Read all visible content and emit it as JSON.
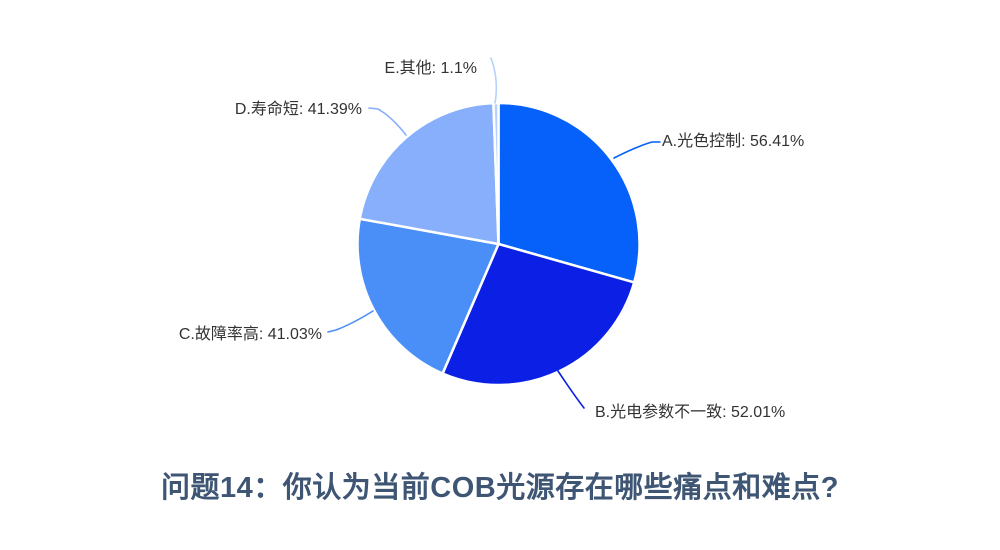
{
  "title": {
    "text": "问题14：你认为当前COB光源存在哪些痛点和难点?",
    "color": "#3E5674"
  },
  "chart_data": {
    "type": "pie",
    "start_angle": "top",
    "direction": "clockwise",
    "label_position": "outside",
    "background": "#ffffff",
    "label_text_color": "#333333",
    "slice_border_color": "#ffffff",
    "segments": [
      {
        "id": "A",
        "name": "A.光色控制",
        "value_pct": 56.41,
        "display": "A.光色控制: 56.41%",
        "color": "#0561FA"
      },
      {
        "id": "B",
        "name": "B.光电参数不一致",
        "value_pct": 52.01,
        "display": "B.光电参数不一致: 52.01%",
        "color": "#0B20E4"
      },
      {
        "id": "C",
        "name": "C.故障率高",
        "value_pct": 41.03,
        "display": "C.故障率高: 41.03%",
        "color": "#4A8FF8"
      },
      {
        "id": "D",
        "name": "D.寿命短",
        "value_pct": 41.39,
        "display": "D.寿命短: 41.39%",
        "color": "#87AFFB"
      },
      {
        "id": "E",
        "name": "E.其他",
        "value_pct": 1.1,
        "display": "E.其他: 1.1%",
        "color": "#B5D1FC"
      }
    ]
  }
}
